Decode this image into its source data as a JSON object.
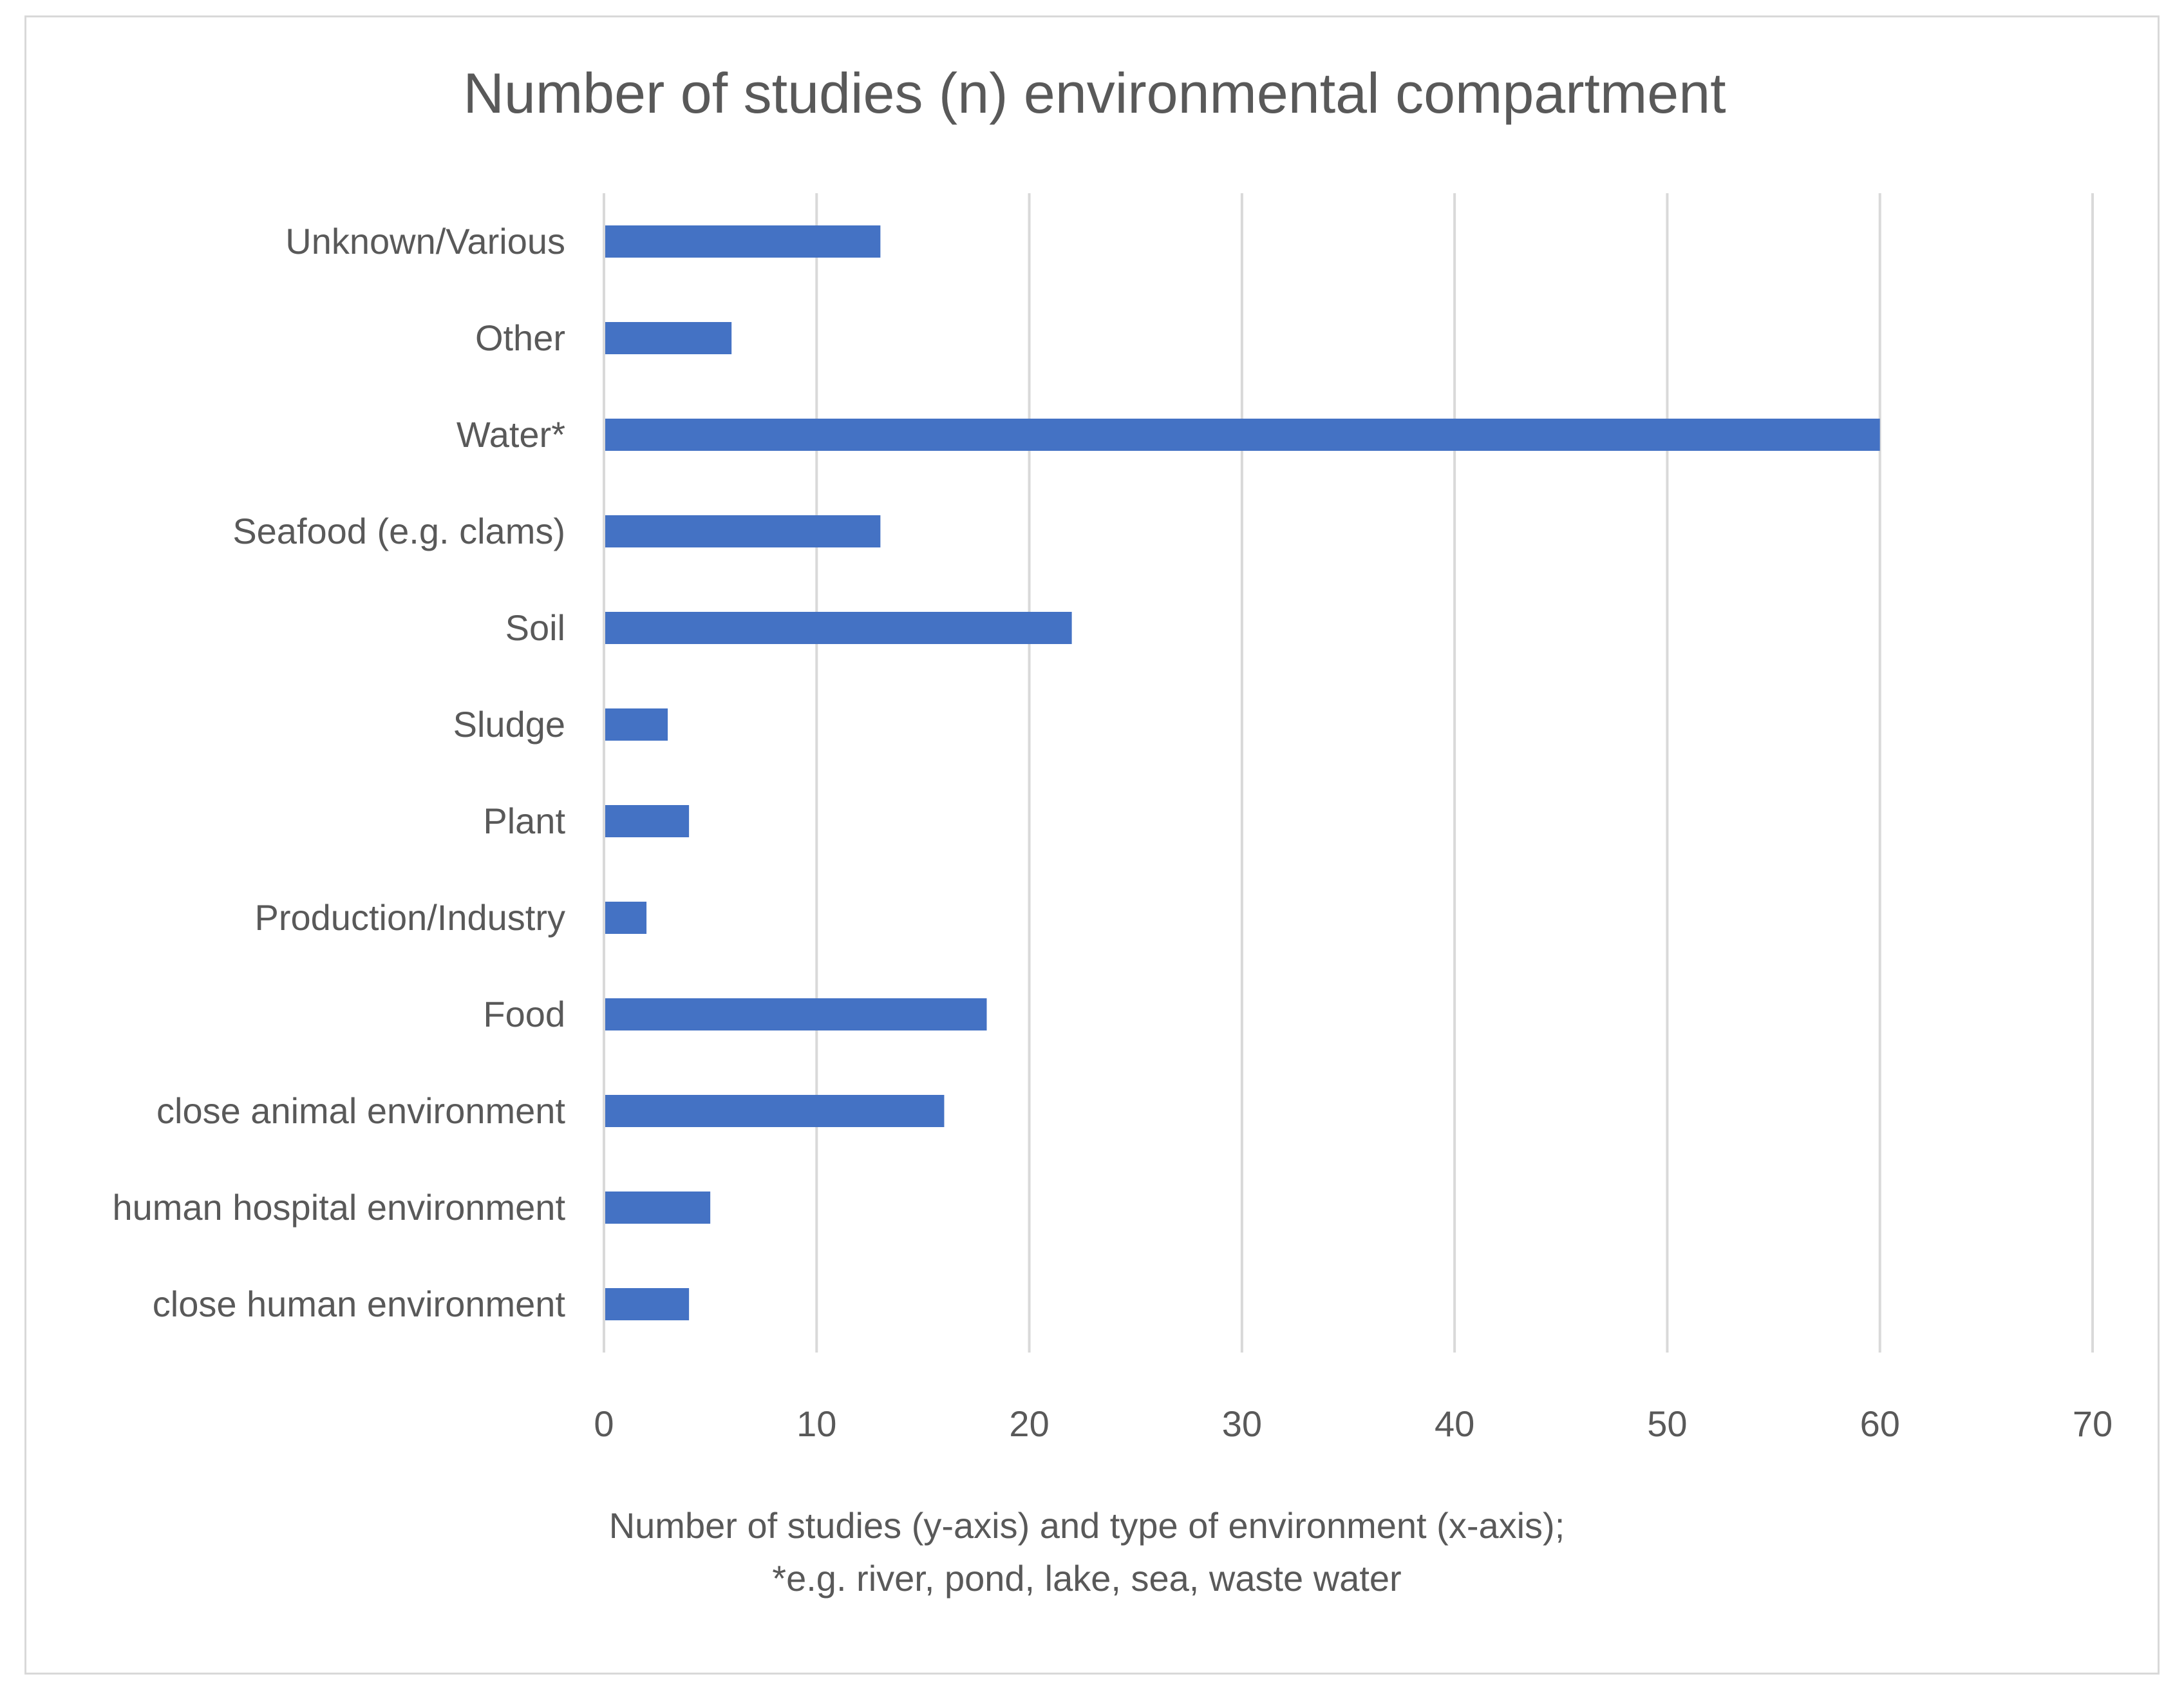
{
  "chart_data": {
    "type": "bar",
    "orientation": "horizontal",
    "title": "Number of studies (n) environmental compartment",
    "xlabel_lines": [
      "Number of studies (y-axis) and type of environment (x-axis);",
      "*e.g. river, pond, lake, sea, waste water"
    ],
    "ylabel": "",
    "categories": [
      "Unknown/Various",
      "Other",
      "Water*",
      "Seafood (e.g. clams)",
      "Soil",
      "Sludge",
      "Plant",
      "Production/Industry",
      "Food",
      "close animal environment",
      "human hospital environment",
      "close human environment"
    ],
    "values": [
      13,
      6,
      60,
      13,
      22,
      3,
      4,
      2,
      18,
      16,
      5,
      4
    ],
    "xlim": [
      0,
      70
    ],
    "ticks": [
      0,
      10,
      20,
      30,
      40,
      50,
      60,
      70
    ],
    "grid": true,
    "bar_color": "#4472c4"
  }
}
